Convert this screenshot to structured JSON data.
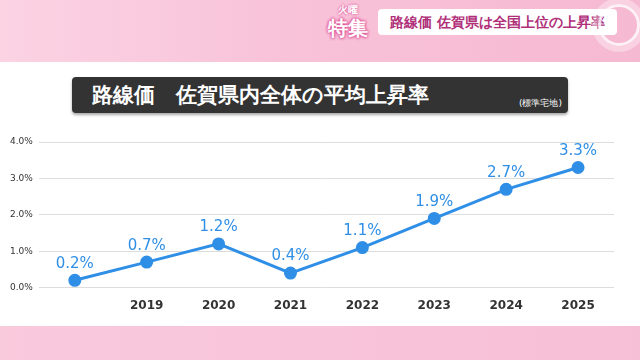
{
  "banner": {
    "tag_small": "火曜",
    "tag": "特集",
    "headline": "路線価 佐賀県は全国上位の上昇率"
  },
  "chart_data": {
    "type": "line",
    "title": "路線価　佐賀県内全体の平均上昇率",
    "subtitle": "(標準宅地)",
    "categories": [
      null,
      "2019",
      "2020",
      "2021",
      "2022",
      "2023",
      "2024",
      "2025"
    ],
    "values": [
      0.2,
      0.7,
      1.2,
      0.4,
      1.1,
      1.9,
      2.7,
      3.3
    ],
    "value_labels": [
      "0.2%",
      "0.7%",
      "1.2%",
      "0.4%",
      "1.1%",
      "1.9%",
      "2.7%",
      "3.3%"
    ],
    "color": "#2f8fe6",
    "ylim": [
      0,
      4
    ],
    "yticks": [
      {
        "value": 0,
        "label": "0.0%"
      },
      {
        "value": 1,
        "label": "1.0%"
      },
      {
        "value": 2,
        "label": "2.0%"
      },
      {
        "value": 3,
        "label": "3.0%"
      },
      {
        "value": 4,
        "label": "4.0%"
      }
    ],
    "grid": true,
    "data_labels": true,
    "marker": "circle"
  }
}
